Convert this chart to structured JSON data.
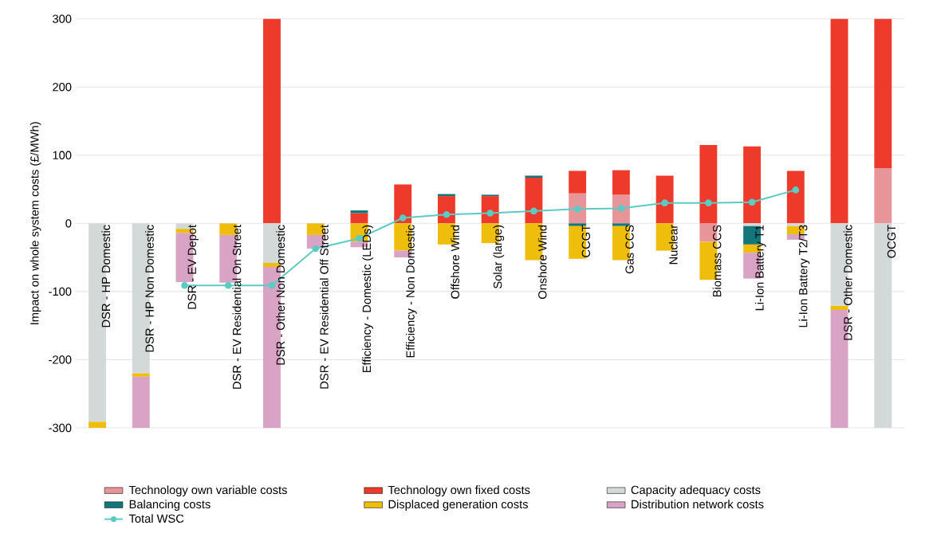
{
  "chart_data": {
    "type": "bar",
    "stacked": true,
    "ylabel": "Impact on whole system costs (£/MWh)",
    "categories": [
      "DSR - HP Domestic",
      "DSR - HP Non Domestic",
      "DSR - EV Depot",
      "DSR - EV Residential On Street",
      "DSR - Other Non Domestic",
      "DSR - EV Residential Off Street",
      "Efficiency - Domestic (LEDs)",
      "Efficiency - Non Domestic",
      "Offshore Wind",
      "Solar (large)",
      "Onshore Wind",
      "CCGT",
      "Gas CCS",
      "Nuclear",
      "Biomass CCS",
      "Li-Ion Battery T1",
      "Li-Ion Battery T2/T3",
      "DSR - Other Domestic",
      "OCGT"
    ],
    "series": [
      {
        "name": "Technology own variable costs",
        "color": "#e8959a",
        "values": [
          null,
          null,
          null,
          null,
          null,
          null,
          null,
          null,
          null,
          null,
          null,
          44,
          42,
          null,
          -27,
          null,
          null,
          null,
          81
        ]
      },
      {
        "name": "Technology own fixed costs",
        "color": "#ee3a2a",
        "values": [
          null,
          null,
          null,
          null,
          300,
          null,
          15,
          57,
          40,
          40,
          67,
          33,
          36,
          70,
          115,
          113,
          77,
          300,
          219
        ]
      },
      {
        "name": "Capacity adequacy costs",
        "color": "#d3d8d8",
        "values": [
          -291,
          -220,
          -8,
          null,
          -58,
          null,
          null,
          null,
          null,
          null,
          null,
          null,
          null,
          null,
          null,
          -4,
          -4,
          -121,
          -300
        ]
      },
      {
        "name": "Balancing costs",
        "color": "#13767a",
        "values": [
          null,
          null,
          null,
          null,
          null,
          null,
          4,
          null,
          3,
          2,
          3,
          -4,
          -4,
          null,
          null,
          -27,
          null,
          null,
          null
        ]
      },
      {
        "name": "Displaced generation costs",
        "color": "#efbe0c",
        "values": [
          -9,
          -5,
          -6,
          -17,
          -6,
          -17,
          -27,
          -40,
          -31,
          -29,
          -54,
          -48,
          -50,
          -40,
          -56,
          -12,
          -12,
          -6,
          null
        ]
      },
      {
        "name": "Distribution network costs",
        "color": "#d9a3c6",
        "values": [
          null,
          -75,
          -72,
          -70,
          -236,
          -20,
          -8,
          -10,
          null,
          null,
          null,
          null,
          null,
          null,
          null,
          -38,
          -8,
          -173,
          null
        ]
      },
      {
        "name": "Total WSC",
        "color": "#5ccbc3",
        "type": "line",
        "marker": "circle",
        "values": [
          null,
          null,
          -91,
          -91,
          -91,
          -37,
          -22,
          8,
          13,
          15,
          18,
          21,
          22,
          30,
          30,
          31,
          49,
          null,
          null
        ]
      }
    ],
    "ylim": [
      -300,
      300
    ],
    "yticks": [
      -300,
      -200,
      -100,
      0,
      100,
      200,
      300
    ],
    "grid": "y",
    "legend": "bottom"
  }
}
